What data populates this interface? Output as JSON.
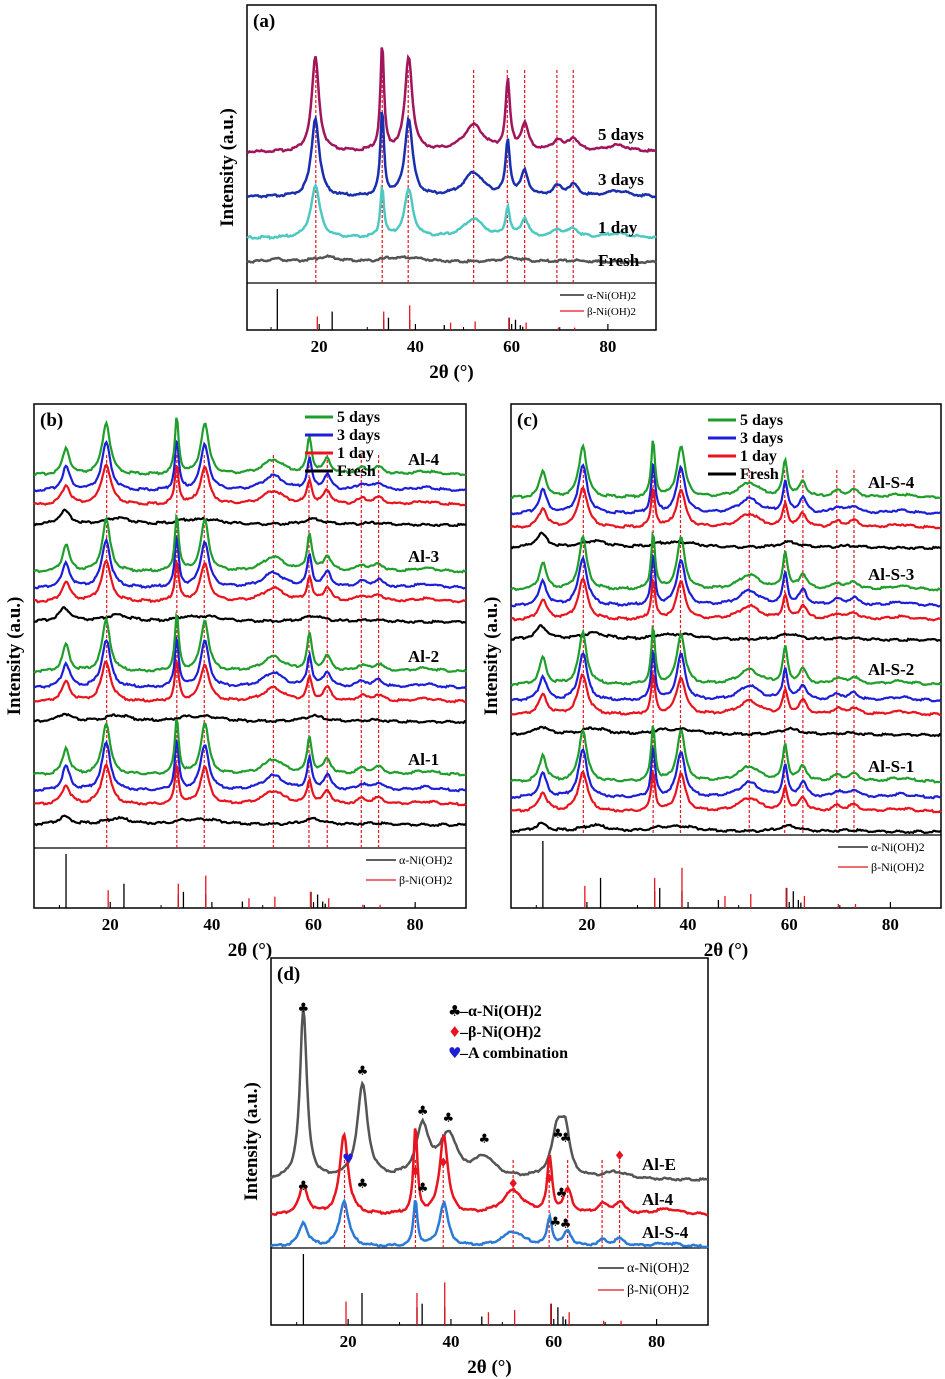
{
  "chart_data": [
    {
      "panel": "a",
      "type": "line",
      "panel_label": "(a)",
      "xlabel": "2θ (°)",
      "ylabel": "Intensity (a.u.)",
      "xlim": [
        5,
        90
      ],
      "xticks": [
        20,
        40,
        60,
        80
      ],
      "series": [
        {
          "name": "5 days",
          "color": "#a0155c"
        },
        {
          "name": "3 days",
          "color": "#1a2fae"
        },
        {
          "name": "1 day",
          "color": "#4ec9c2"
        },
        {
          "name": "Fresh",
          "color": "#555555"
        }
      ],
      "series_labels_position": "right of curves",
      "reference_legend": [
        {
          "name": "α-Ni(OH)2",
          "color": "#000000"
        },
        {
          "name": "β-Ni(OH)2",
          "color": "#e8141e"
        }
      ],
      "reference_alpha": [
        [
          11.3,
          1.0
        ],
        [
          22.7,
          0.45
        ],
        [
          33.4,
          0.25
        ],
        [
          34.4,
          0.3
        ],
        [
          38.8,
          0.25
        ],
        [
          46.0,
          0.12
        ],
        [
          59.5,
          0.3
        ],
        [
          60.8,
          0.25
        ],
        [
          61.8,
          0.12
        ],
        [
          62.3,
          0.08
        ]
      ],
      "reference_beta": [
        [
          19.3,
          0.55
        ],
        [
          33.1,
          0.75
        ],
        [
          38.5,
          1.0
        ],
        [
          52.1,
          0.35
        ],
        [
          59.1,
          0.5
        ],
        [
          62.7,
          0.3
        ],
        [
          69.4,
          0.1
        ],
        [
          72.8,
          0.1
        ],
        [
          47.0,
          0.3
        ]
      ],
      "dashed_lines_at": [
        19.3,
        33.1,
        38.5,
        52.1,
        59.1,
        62.7,
        69.4,
        72.8
      ]
    },
    {
      "panel": "b",
      "type": "line",
      "panel_label": "(b)",
      "xlabel": "2θ (°)",
      "ylabel": "Intensity (a.u.)",
      "xlim": [
        5,
        90
      ],
      "xticks": [
        20,
        40,
        60,
        80
      ],
      "legend": [
        {
          "name": "5 days",
          "color": "#1f9e2b"
        },
        {
          "name": "3 days",
          "color": "#1c1fd6"
        },
        {
          "name": "1 day",
          "color": "#e8141e"
        },
        {
          "name": "Fresh",
          "color": "#000000"
        }
      ],
      "legend_position": "top-right",
      "groups": [
        "Al-4",
        "Al-3",
        "Al-2",
        "Al-1"
      ],
      "reference_legend": [
        {
          "name": "α-Ni(OH)2",
          "color": "#000000"
        },
        {
          "name": "β-Ni(OH)2",
          "color": "#e8141e"
        }
      ],
      "dashed_lines_at": [
        19.3,
        33.1,
        38.5,
        52.1,
        59.1,
        62.7,
        69.4,
        72.8
      ]
    },
    {
      "panel": "c",
      "type": "line",
      "panel_label": "(c)",
      "xlabel": "2θ (°)",
      "ylabel": "Intensity (a.u.)",
      "xlim": [
        5,
        90
      ],
      "xticks": [
        20,
        40,
        60,
        80
      ],
      "legend": [
        {
          "name": "5 days",
          "color": "#1f9e2b"
        },
        {
          "name": "3 days",
          "color": "#1c1fd6"
        },
        {
          "name": "1 day",
          "color": "#e8141e"
        },
        {
          "name": "Fresh",
          "color": "#000000"
        }
      ],
      "legend_position": "top-left",
      "groups": [
        "Al-S-4",
        "Al-S-3",
        "Al-S-2",
        "Al-S-1"
      ],
      "reference_legend": [
        {
          "name": "α-Ni(OH)2",
          "color": "#000000"
        },
        {
          "name": "β-Ni(OH)2",
          "color": "#e8141e"
        }
      ],
      "dashed_lines_at": [
        19.3,
        33.1,
        38.5,
        52.1,
        59.1,
        62.7,
        69.4,
        72.8
      ]
    },
    {
      "panel": "d",
      "type": "line",
      "panel_label": "(d)",
      "xlabel": "2θ (°)",
      "ylabel": "Intensity (a.u.)",
      "xlim": [
        5,
        90
      ],
      "xticks": [
        20,
        40,
        60,
        80
      ],
      "series": [
        {
          "name": "Al-E",
          "color": "#555555"
        },
        {
          "name": "Al-4",
          "color": "#e8141e"
        },
        {
          "name": "Al-S-4",
          "color": "#2a7ad6"
        }
      ],
      "marker_legend": [
        {
          "symbol": "♣",
          "text": "–α-Ni(OH)2",
          "color": "#000000"
        },
        {
          "symbol": "♦",
          "text": "–β-Ni(OH)2",
          "color": "#e8141e"
        },
        {
          "symbol": "♥",
          "text": "–A combination",
          "color": "#1c1fd6"
        }
      ],
      "reference_legend": [
        {
          "name": "α-Ni(OH)2",
          "color": "#000000"
        },
        {
          "name": "β-Ni(OH)2",
          "color": "#e8141e"
        }
      ],
      "dashed_lines_at": [
        19.3,
        33.1,
        38.5,
        52.1,
        59.1,
        62.7,
        69.4,
        72.8
      ]
    }
  ]
}
